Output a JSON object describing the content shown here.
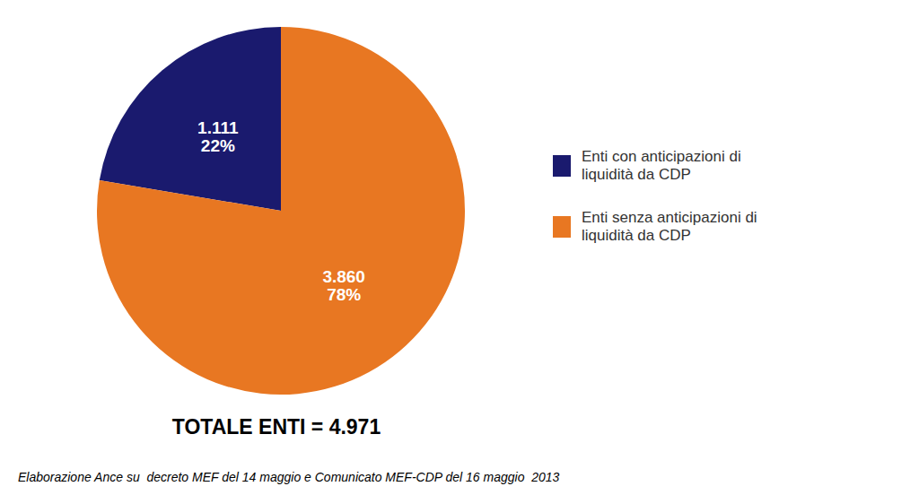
{
  "chart_data": {
    "type": "pie",
    "categories": [
      "Enti con anticipazioni di\nliquidità da CDP",
      "Enti senza anticipazioni di\nliquidità da CDP"
    ],
    "values": [
      1111,
      3860
    ],
    "value_labels": [
      "1.111\n22%",
      "3.860\n78%"
    ],
    "colors": [
      "#1a1a6e",
      "#e87722"
    ],
    "data_labels": true,
    "legend": "right",
    "annotations": [
      "TOTALE ENTI = 4.971",
      "Elaborazione Ance su  decreto MEF del 14 maggio e Comunicato MEF-CDP del 16 maggio  2013"
    ]
  }
}
